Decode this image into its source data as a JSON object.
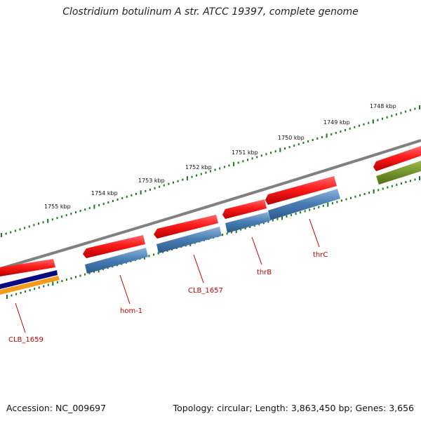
{
  "title": "Clostridium botulinum A str. ATCC 19397, complete genome",
  "footer": {
    "accession": "Accession: NC_009697",
    "topology": "Topology: circular; Length: 3,863,450 bp; Genes: 3,656"
  },
  "ruler_labels": [
    "1748 kbp",
    "1749 kbp",
    "1750 kbp",
    "1751 kbp",
    "1752 kbp",
    "1753 kbp",
    "1754 kbp",
    "1755 kbp"
  ],
  "gene_labels": [
    "thrC",
    "thrB",
    "CLB_1657",
    "hom-1",
    "CLB_1659"
  ],
  "colors": {
    "backbone": "#808080",
    "forward_gene": "#ee1111",
    "cds": "#4a7fb5",
    "gene_label": "#c00000",
    "tick": "#1a7a1a",
    "navy_track": "#0a0a80",
    "orange_track": "#f29a1a",
    "olive_track": "#6b8e23"
  }
}
